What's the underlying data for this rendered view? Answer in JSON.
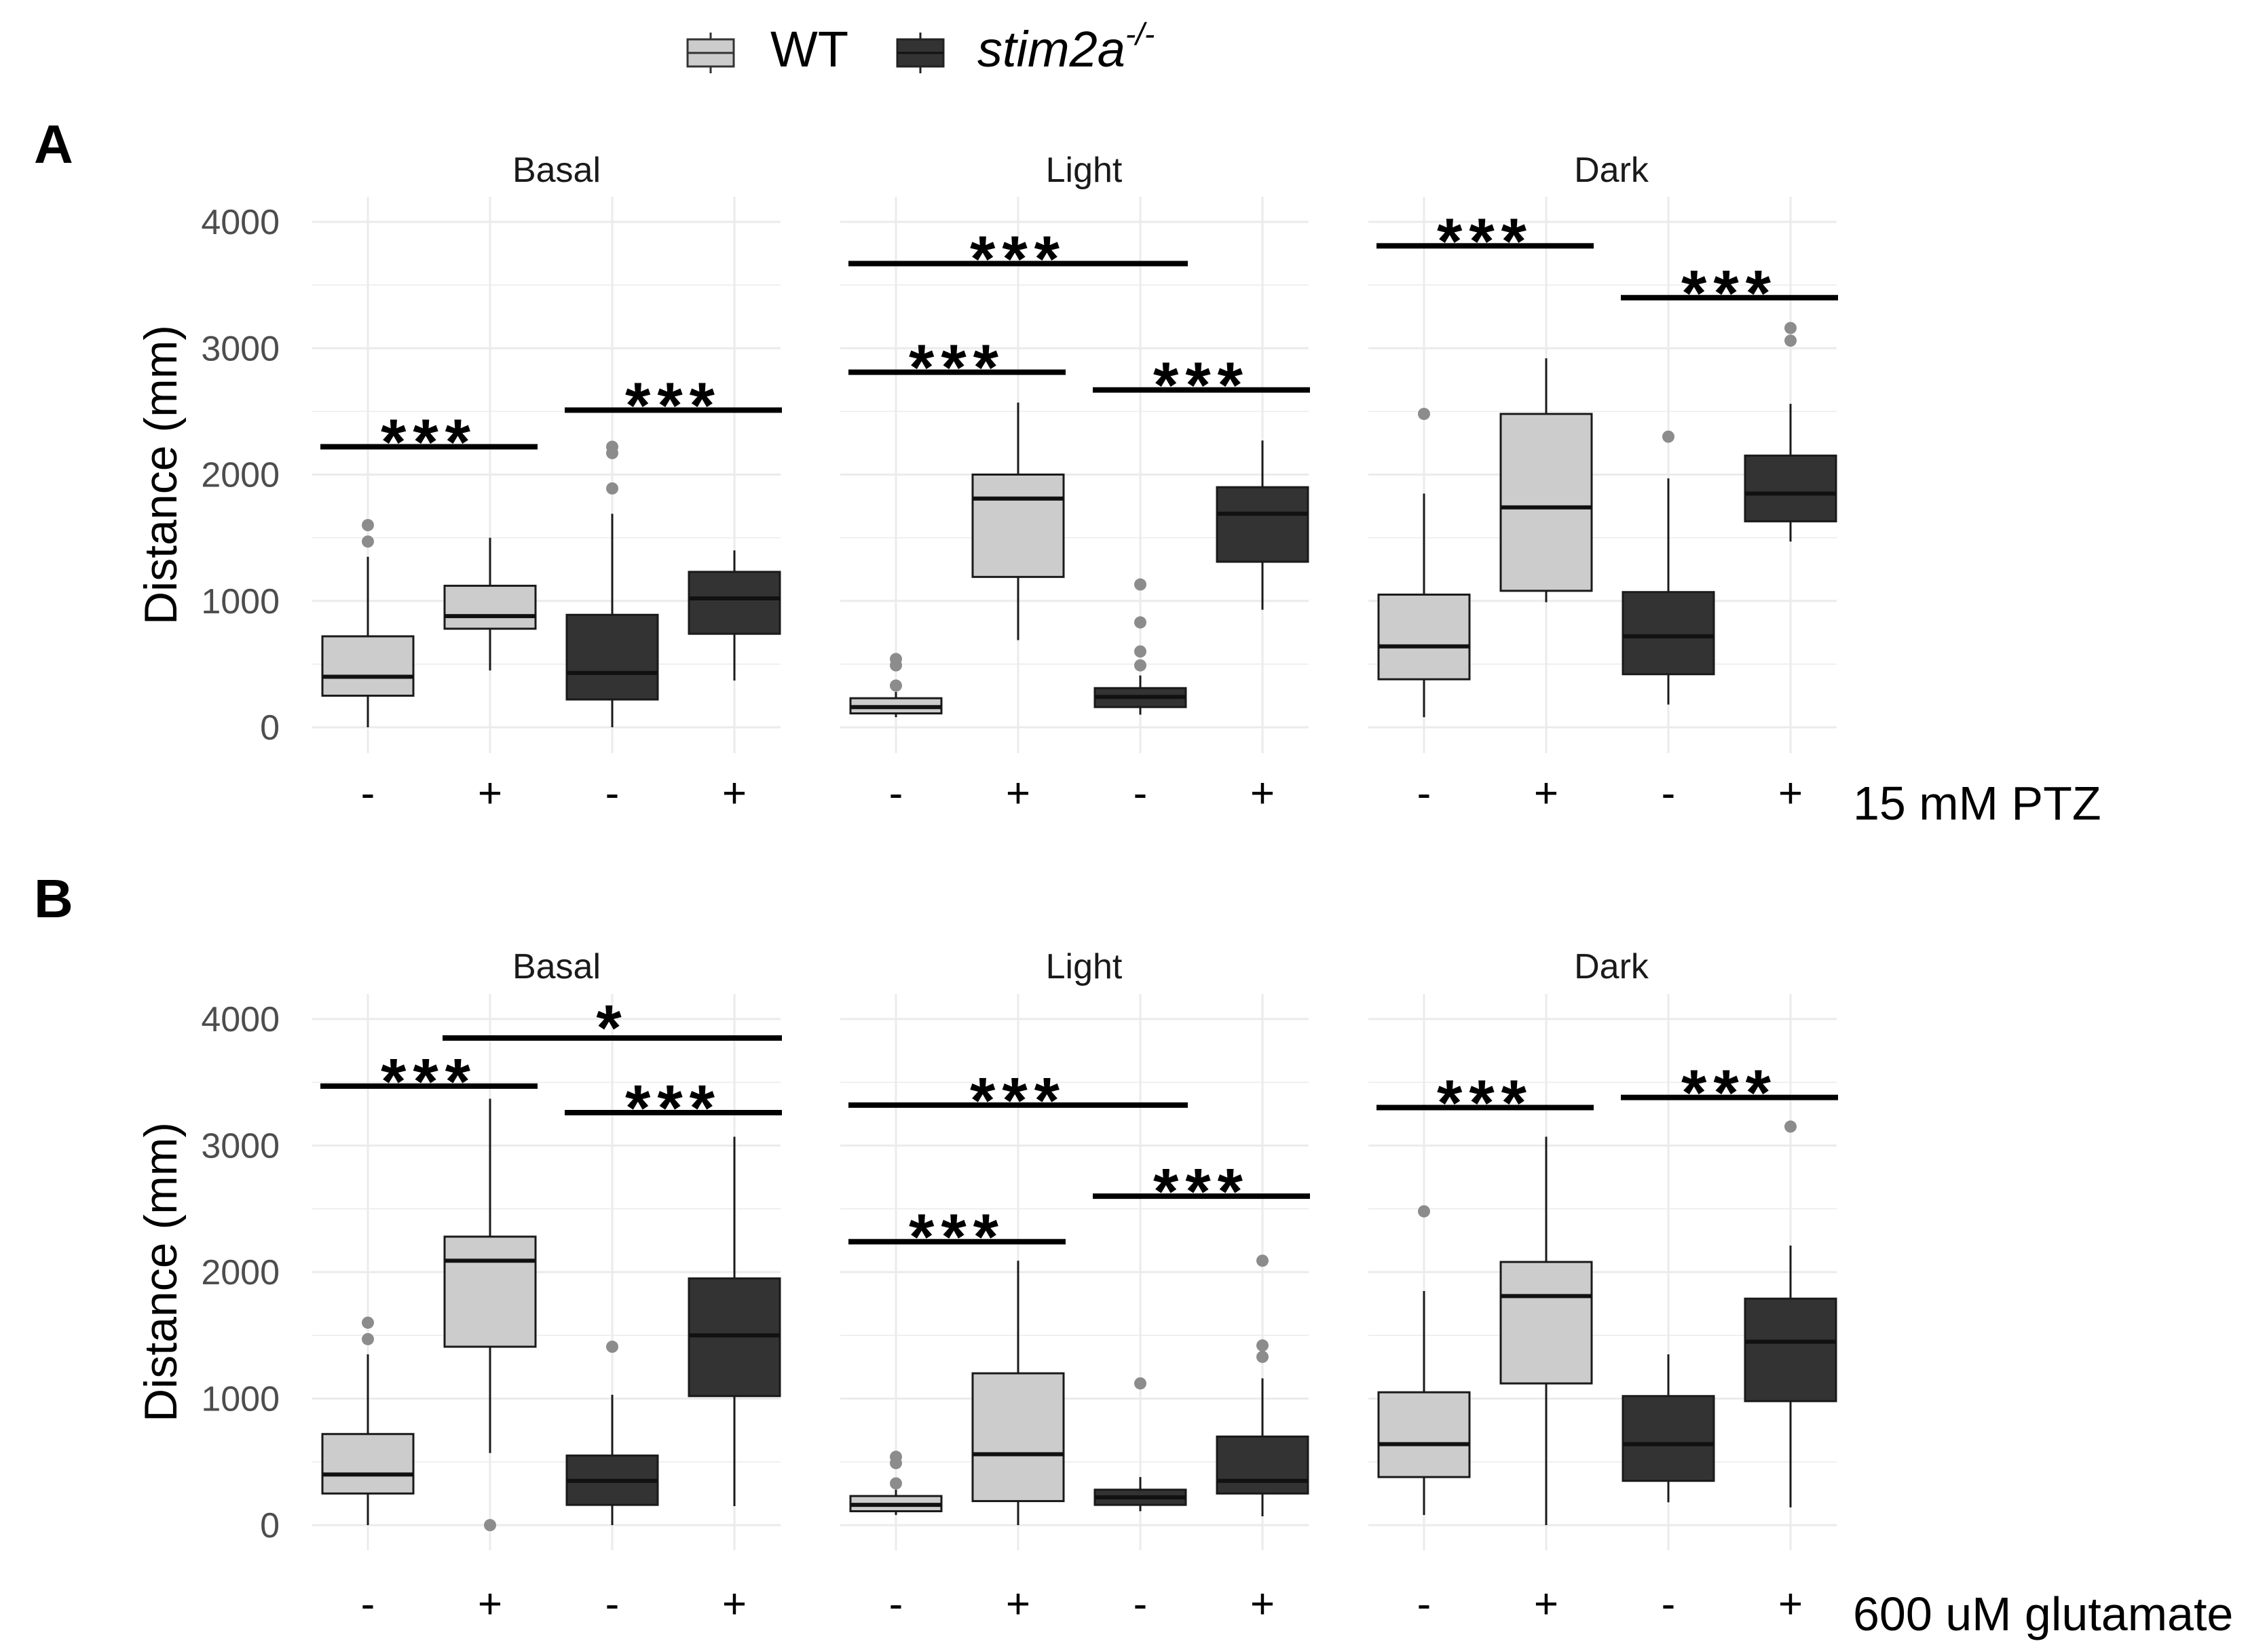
{
  "legend": {
    "items": [
      {
        "label": "WT",
        "label_italic": false,
        "color": "#cccccc"
      },
      {
        "label": "stim2a",
        "sup": "-/-",
        "label_italic": true,
        "color": "#333333"
      }
    ]
  },
  "facets": [
    "Basal",
    "Light",
    "Dark"
  ],
  "groups": [
    "-",
    "+",
    "-",
    "+"
  ],
  "style": {
    "wt_fill": "#cccccc",
    "ko_fill": "#333333",
    "outlier_color": "#8c8c8c",
    "grid_color": "#ebebeb",
    "text_color": "#000000",
    "tick_text_color": "#4d4d4d"
  },
  "chart_data": [
    {
      "panel_label": "A",
      "type": "boxplot",
      "ylabel": "Distance (mm)",
      "ylim": [
        0,
        4000
      ],
      "yticks": [
        0,
        1000,
        2000,
        3000,
        4000
      ],
      "treatment_label": "15 mM PTZ",
      "facets": [
        {
          "name": "Basal",
          "boxes": [
            {
              "genotype": "WT",
              "treatment": "-",
              "min": 0,
              "q1": 250,
              "median": 400,
              "q3": 720,
              "max": 1350,
              "outliers": [
                1470,
                1600
              ]
            },
            {
              "genotype": "WT",
              "treatment": "+",
              "min": 450,
              "q1": 780,
              "median": 880,
              "q3": 1120,
              "max": 1500,
              "outliers": []
            },
            {
              "genotype": "stim2a-/-",
              "treatment": "-",
              "min": 0,
              "q1": 220,
              "median": 430,
              "q3": 890,
              "max": 1690,
              "outliers": [
                1890,
                2170,
                2220
              ]
            },
            {
              "genotype": "stim2a-/-",
              "treatment": "+",
              "min": 370,
              "q1": 740,
              "median": 1020,
              "q3": 1230,
              "max": 1400,
              "outliers": []
            }
          ],
          "significance": [
            {
              "from": 0,
              "to": 1,
              "y": 2220,
              "label": "***"
            },
            {
              "from": 2,
              "to": 3,
              "y": 2510,
              "label": "***"
            }
          ]
        },
        {
          "name": "Light",
          "boxes": [
            {
              "genotype": "WT",
              "treatment": "-",
              "min": 80,
              "q1": 110,
              "median": 160,
              "q3": 230,
              "max": 280,
              "outliers": [
                330,
                490,
                540
              ]
            },
            {
              "genotype": "WT",
              "treatment": "+",
              "min": 690,
              "q1": 1190,
              "median": 1810,
              "q3": 2000,
              "max": 2570,
              "outliers": []
            },
            {
              "genotype": "stim2a-/-",
              "treatment": "-",
              "min": 100,
              "q1": 160,
              "median": 240,
              "q3": 310,
              "max": 410,
              "outliers": [
                490,
                600,
                830,
                1130
              ]
            },
            {
              "genotype": "stim2a-/-",
              "treatment": "+",
              "min": 930,
              "q1": 1310,
              "median": 1690,
              "q3": 1900,
              "max": 2270,
              "outliers": []
            }
          ],
          "significance": [
            {
              "from": 0,
              "to": 2,
              "y": 3670,
              "label": "***"
            },
            {
              "from": 0,
              "to": 1,
              "y": 2810,
              "label": "***"
            },
            {
              "from": 2,
              "to": 3,
              "y": 2670,
              "label": "***"
            }
          ]
        },
        {
          "name": "Dark",
          "boxes": [
            {
              "genotype": "WT",
              "treatment": "-",
              "min": 80,
              "q1": 380,
              "median": 640,
              "q3": 1050,
              "max": 1850,
              "outliers": [
                2480
              ]
            },
            {
              "genotype": "WT",
              "treatment": "+",
              "min": 990,
              "q1": 1080,
              "median": 1740,
              "q3": 2480,
              "max": 2920,
              "outliers": []
            },
            {
              "genotype": "stim2a-/-",
              "treatment": "-",
              "min": 180,
              "q1": 420,
              "median": 720,
              "q3": 1070,
              "max": 1970,
              "outliers": [
                2300
              ]
            },
            {
              "genotype": "stim2a-/-",
              "treatment": "+",
              "min": 1470,
              "q1": 1630,
              "median": 1850,
              "q3": 2150,
              "max": 2560,
              "outliers": [
                3060,
                3160
              ]
            }
          ],
          "significance": [
            {
              "from": 0,
              "to": 1,
              "y": 3810,
              "label": "***"
            },
            {
              "from": 2,
              "to": 3,
              "y": 3400,
              "label": "***"
            }
          ]
        }
      ]
    },
    {
      "panel_label": "B",
      "type": "boxplot",
      "ylabel": "Distance (mm)",
      "ylim": [
        0,
        4000
      ],
      "yticks": [
        0,
        1000,
        2000,
        3000,
        4000
      ],
      "treatment_label": "600 uM glutamate",
      "facets": [
        {
          "name": "Basal",
          "boxes": [
            {
              "genotype": "WT",
              "treatment": "-",
              "min": 0,
              "q1": 250,
              "median": 400,
              "q3": 720,
              "max": 1350,
              "outliers": [
                1470,
                1600
              ]
            },
            {
              "genotype": "WT",
              "treatment": "+",
              "min": 570,
              "q1": 1410,
              "median": 2090,
              "q3": 2280,
              "max": 3370,
              "outliers": [
                0
              ]
            },
            {
              "genotype": "stim2a-/-",
              "treatment": "-",
              "min": 0,
              "q1": 160,
              "median": 350,
              "q3": 550,
              "max": 1030,
              "outliers": [
                1410
              ]
            },
            {
              "genotype": "stim2a-/-",
              "treatment": "+",
              "min": 150,
              "q1": 1020,
              "median": 1500,
              "q3": 1950,
              "max": 3070,
              "outliers": []
            }
          ],
          "significance": [
            {
              "from": 0,
              "to": 1,
              "y": 3470,
              "label": "***"
            },
            {
              "from": 1,
              "to": 3,
              "y": 3850,
              "label": "*"
            },
            {
              "from": 2,
              "to": 3,
              "y": 3260,
              "label": "***"
            }
          ]
        },
        {
          "name": "Light",
          "boxes": [
            {
              "genotype": "WT",
              "treatment": "-",
              "min": 80,
              "q1": 110,
              "median": 160,
              "q3": 230,
              "max": 280,
              "outliers": [
                330,
                490,
                540
              ]
            },
            {
              "genotype": "WT",
              "treatment": "+",
              "min": 0,
              "q1": 190,
              "median": 560,
              "q3": 1200,
              "max": 2090,
              "outliers": []
            },
            {
              "genotype": "stim2a-/-",
              "treatment": "-",
              "min": 110,
              "q1": 160,
              "median": 220,
              "q3": 280,
              "max": 380,
              "outliers": [
                1120
              ]
            },
            {
              "genotype": "stim2a-/-",
              "treatment": "+",
              "min": 70,
              "q1": 250,
              "median": 350,
              "q3": 700,
              "max": 1160,
              "outliers": [
                1330,
                1420,
                2090
              ]
            }
          ],
          "significance": [
            {
              "from": 0,
              "to": 2,
              "y": 3320,
              "label": "***"
            },
            {
              "from": 0,
              "to": 1,
              "y": 2240,
              "label": "***"
            },
            {
              "from": 2,
              "to": 3,
              "y": 2600,
              "label": "***"
            }
          ]
        },
        {
          "name": "Dark",
          "boxes": [
            {
              "genotype": "WT",
              "treatment": "-",
              "min": 80,
              "q1": 380,
              "median": 640,
              "q3": 1050,
              "max": 1850,
              "outliers": [
                2480
              ]
            },
            {
              "genotype": "WT",
              "treatment": "+",
              "min": 0,
              "q1": 1120,
              "median": 1810,
              "q3": 2080,
              "max": 3070,
              "outliers": []
            },
            {
              "genotype": "stim2a-/-",
              "treatment": "-",
              "min": 180,
              "q1": 350,
              "median": 640,
              "q3": 1020,
              "max": 1350,
              "outliers": []
            },
            {
              "genotype": "stim2a-/-",
              "treatment": "+",
              "min": 140,
              "q1": 980,
              "median": 1450,
              "q3": 1790,
              "max": 2210,
              "outliers": [
                3150
              ]
            }
          ],
          "significance": [
            {
              "from": 0,
              "to": 1,
              "y": 3300,
              "label": "***"
            },
            {
              "from": 2,
              "to": 3,
              "y": 3380,
              "label": "***"
            }
          ]
        }
      ]
    }
  ]
}
